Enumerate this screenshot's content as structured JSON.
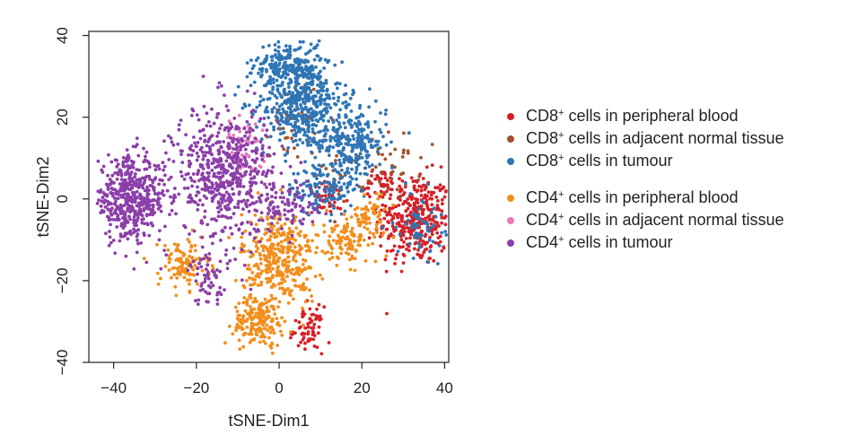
{
  "chart_data": {
    "type": "scatter",
    "xlabel": "tSNE-Dim1",
    "ylabel": "tSNE-Dim2",
    "xlim": [
      -46,
      41
    ],
    "ylim": [
      -40,
      41
    ],
    "xticks": [
      -40,
      -20,
      0,
      20,
      40
    ],
    "yticks": [
      -40,
      -20,
      0,
      20,
      40
    ],
    "grid": false,
    "legend_position": "right",
    "series": [
      {
        "name_parts": [
          "CD8",
          "+",
          " cells in peripheral blood"
        ],
        "color": "#d62027",
        "clusters": [
          {
            "cx": 33,
            "cy": -5,
            "sx": 4.5,
            "sy": 5.5,
            "n": 380
          },
          {
            "cx": 7,
            "cy": -32,
            "sx": 1.8,
            "sy": 2.8,
            "n": 70
          },
          {
            "cx": 12,
            "cy": 0,
            "sx": 2.5,
            "sy": 2,
            "n": 40
          },
          {
            "cx": 25,
            "cy": 4,
            "sx": 2.5,
            "sy": 2,
            "n": 40
          }
        ]
      },
      {
        "name_parts": [
          "CD8",
          "+",
          " cells in adjacent normal tissue"
        ],
        "color": "#a0522d",
        "clusters": [
          {
            "cx": 28,
            "cy": 8,
            "sx": 3,
            "sy": 4,
            "n": 35
          },
          {
            "cx": 4,
            "cy": 20,
            "sx": 3,
            "sy": 5,
            "n": 45
          },
          {
            "cx": 15,
            "cy": 6,
            "sx": 3,
            "sy": 3,
            "n": 25
          }
        ]
      },
      {
        "name_parts": [
          "CD8",
          "+",
          " cells in tumour"
        ],
        "color": "#2e75b6",
        "clusters": [
          {
            "cx": 5,
            "cy": 24,
            "sx": 5,
            "sy": 6,
            "n": 500
          },
          {
            "cx": 17,
            "cy": 14,
            "sx": 4.5,
            "sy": 5,
            "n": 280
          },
          {
            "cx": 2,
            "cy": 33,
            "sx": 4,
            "sy": 3,
            "n": 150
          },
          {
            "cx": 10,
            "cy": 2,
            "sx": 4,
            "sy": 3,
            "n": 120
          },
          {
            "cx": 34,
            "cy": -6,
            "sx": 3,
            "sy": 4,
            "n": 60
          }
        ]
      },
      {
        "name_parts": [
          "CD4",
          "+",
          " cells in peripheral blood"
        ],
        "color": "#f28e1c",
        "clusters": [
          {
            "cx": 0,
            "cy": -15,
            "sx": 4.5,
            "sy": 6,
            "n": 380
          },
          {
            "cx": -5,
            "cy": -30,
            "sx": 3,
            "sy": 3,
            "n": 170
          },
          {
            "cx": -23,
            "cy": -16,
            "sx": 3,
            "sy": 3,
            "n": 110
          },
          {
            "cx": 17,
            "cy": -10,
            "sx": 3.5,
            "sy": 3,
            "n": 120
          },
          {
            "cx": 22,
            "cy": -3,
            "sx": 2.5,
            "sy": 2,
            "n": 45
          }
        ]
      },
      {
        "name_parts": [
          "CD4",
          "+",
          " cells in adjacent normal tissue"
        ],
        "color": "#e87ab8",
        "clusters": [
          {
            "cx": -8,
            "cy": 12,
            "sx": 2,
            "sy": 4,
            "n": 40
          },
          {
            "cx": -11,
            "cy": 14,
            "sx": 1.5,
            "sy": 2,
            "n": 15
          }
        ]
      },
      {
        "name_parts": [
          "CD4",
          "+",
          " cells in tumour"
        ],
        "color": "#8b3fa8",
        "clusters": [
          {
            "cx": -36,
            "cy": 0,
            "sx": 4.5,
            "sy": 5,
            "n": 500
          },
          {
            "cx": -13,
            "cy": 6,
            "sx": 6,
            "sy": 8,
            "n": 600
          },
          {
            "cx": -17,
            "cy": -20,
            "sx": 2.5,
            "sy": 3,
            "n": 60
          },
          {
            "cx": 3,
            "cy": -2,
            "sx": 4,
            "sy": 3,
            "n": 80
          }
        ]
      }
    ]
  }
}
